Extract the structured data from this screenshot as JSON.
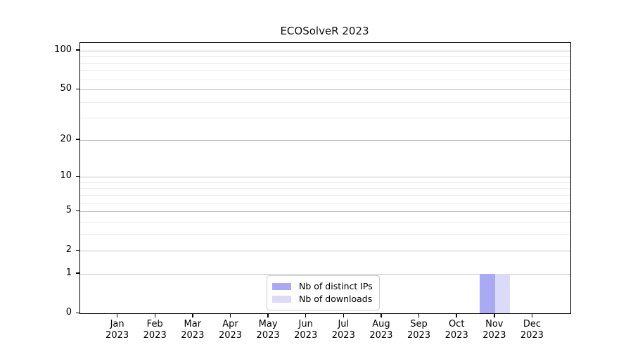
{
  "title": "ECOSolveR 2023",
  "chart_data": {
    "type": "bar",
    "title": "ECOSolveR 2023",
    "categories": [
      "Jan 2023",
      "Feb 2023",
      "Mar 2023",
      "Apr 2023",
      "May 2023",
      "Jun 2023",
      "Jul 2023",
      "Aug 2023",
      "Sep 2023",
      "Oct 2023",
      "Nov 2023",
      "Dec 2023"
    ],
    "x_tick_months": [
      "Jan",
      "Feb",
      "Mar",
      "Apr",
      "May",
      "Jun",
      "Jul",
      "Aug",
      "Sep",
      "Oct",
      "Nov",
      "Dec"
    ],
    "x_tick_year": "2023",
    "series": [
      {
        "name": "Nb of distinct IPs",
        "color": "#a9a9f5",
        "values": [
          0,
          0,
          0,
          0,
          0,
          0,
          0,
          0,
          0,
          0,
          1,
          0
        ]
      },
      {
        "name": "Nb of downloads",
        "color": "#dbdaf8",
        "values": [
          0,
          0,
          0,
          0,
          0,
          0,
          0,
          0,
          0,
          0,
          1,
          0
        ]
      }
    ],
    "y_scale": "log1p",
    "ylim": [
      0,
      114
    ],
    "y_major_ticks": [
      0,
      1,
      2,
      5,
      10,
      20,
      50,
      100
    ],
    "y_minor_ticks": [
      3,
      4,
      6,
      7,
      8,
      9,
      30,
      40,
      60,
      70,
      80,
      90
    ],
    "grid": true,
    "legend_position": "lower center",
    "colors": {
      "grid_major": "#c3c3c3",
      "grid_minor": "#ebebeb",
      "axis": "#000000",
      "background": "#ffffff"
    }
  }
}
